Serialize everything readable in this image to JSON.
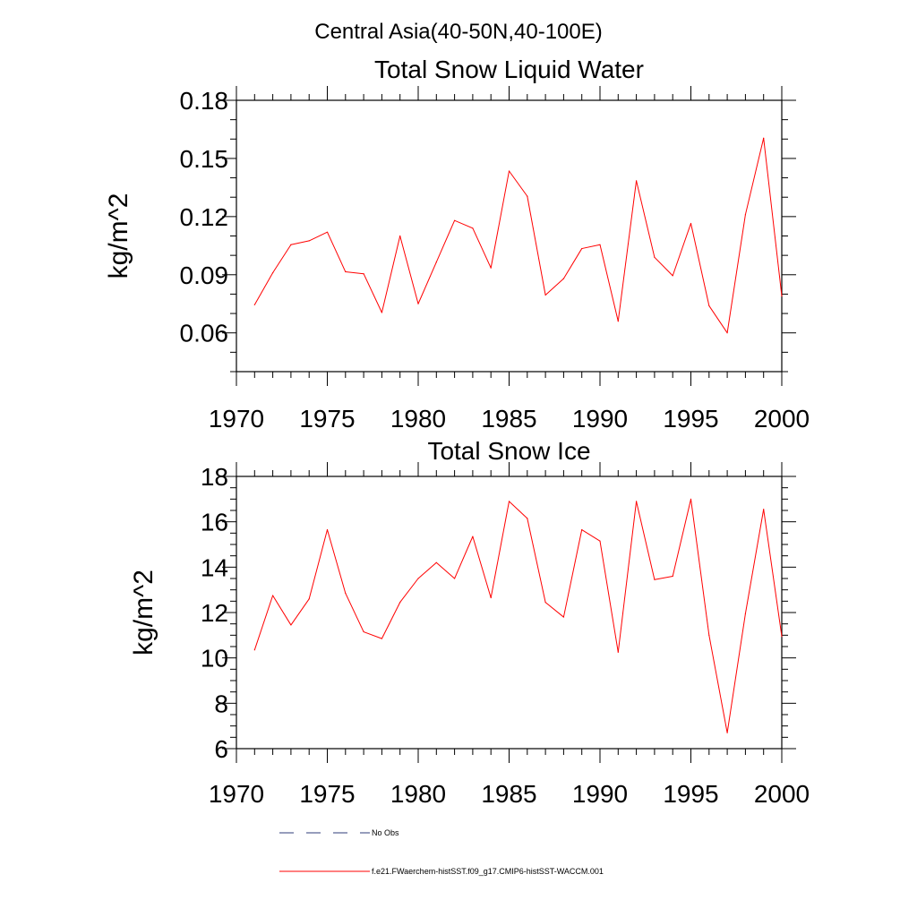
{
  "figure": {
    "suptitle": "Central Asia(40-50N,40-100E)"
  },
  "chart_data": [
    {
      "type": "line",
      "title": "Total Snow Liquid Water",
      "xlabel": "",
      "ylabel": "kg/m^2",
      "xlim": [
        1970,
        2000
      ],
      "ylim": [
        0.04,
        0.18
      ],
      "xticks": [
        1970,
        1975,
        1980,
        1985,
        1990,
        1995,
        2000
      ],
      "xtick_labels": [
        "1970",
        "1975",
        "1980",
        "1985",
        "1990",
        "1995",
        "2000"
      ],
      "yticks": [
        0.06,
        0.09,
        0.12,
        0.15,
        0.18
      ],
      "ytick_labels": [
        "0.06",
        "0.09",
        "0.12",
        "0.15",
        "0.18"
      ],
      "x_minor_step": 1,
      "y_minor_step": 0.01,
      "grid": false,
      "x": [
        1971,
        1972,
        1973,
        1974,
        1975,
        1976,
        1977,
        1978,
        1979,
        1980,
        1981,
        1982,
        1983,
        1984,
        1985,
        1986,
        1987,
        1988,
        1989,
        1990,
        1991,
        1992,
        1993,
        1994,
        1995,
        1996,
        1997,
        1998,
        1999,
        2000
      ],
      "series": [
        {
          "name": "f.e21.FWaerchem-histSST.f09_g17.CMIP6-histSST-WACCM.001",
          "color": "#ff0000",
          "values": [
            0.0745,
            0.091,
            0.1055,
            0.1075,
            0.112,
            0.0915,
            0.0905,
            0.0705,
            0.11,
            0.075,
            0.0965,
            0.118,
            0.114,
            0.0935,
            0.1435,
            0.1305,
            0.0795,
            0.088,
            0.1035,
            0.1055,
            0.066,
            0.1385,
            0.099,
            0.0895,
            0.1165,
            0.074,
            0.06,
            0.121,
            0.1605,
            0.079
          ]
        }
      ]
    },
    {
      "type": "line",
      "title": "Total Snow Ice",
      "xlabel": "",
      "ylabel": "kg/m^2",
      "xlim": [
        1970,
        2000
      ],
      "ylim": [
        6,
        18
      ],
      "xticks": [
        1970,
        1975,
        1980,
        1985,
        1990,
        1995,
        2000
      ],
      "xtick_labels": [
        "1970",
        "1975",
        "1980",
        "1985",
        "1990",
        "1995",
        "2000"
      ],
      "yticks": [
        6,
        8,
        10,
        12,
        14,
        16,
        18
      ],
      "ytick_labels": [
        "6",
        "8",
        "10",
        "12",
        "14",
        "16",
        "18"
      ],
      "x_minor_step": 1,
      "y_minor_step": 0.5,
      "grid": false,
      "x": [
        1971,
        1972,
        1973,
        1974,
        1975,
        1976,
        1977,
        1978,
        1979,
        1980,
        1981,
        1982,
        1983,
        1984,
        1985,
        1986,
        1987,
        1988,
        1989,
        1990,
        1991,
        1992,
        1993,
        1994,
        1995,
        1996,
        1997,
        1998,
        1999,
        2000
      ],
      "series": [
        {
          "name": "f.e21.FWaerchem-histSST.f09_g17.CMIP6-histSST-WACCM.001",
          "color": "#ff0000",
          "values": [
            10.35,
            12.75,
            11.45,
            12.6,
            15.65,
            12.85,
            11.15,
            10.85,
            12.45,
            13.5,
            14.2,
            13.5,
            15.35,
            12.65,
            16.9,
            16.15,
            12.45,
            11.8,
            15.65,
            15.15,
            10.25,
            16.9,
            13.45,
            13.6,
            17.0,
            11.0,
            6.7,
            11.95,
            16.55,
            10.95
          ]
        }
      ]
    }
  ],
  "legend": {
    "placement": "bottom-left",
    "entries": [
      {
        "label": "No Obs",
        "color": "#2f3b7a",
        "style": "dashed"
      },
      {
        "label": "f.e21.FWaerchem-histSST.f09_g17.CMIP6-histSST-WACCM.001",
        "color": "#ff0000",
        "style": "solid"
      }
    ]
  }
}
